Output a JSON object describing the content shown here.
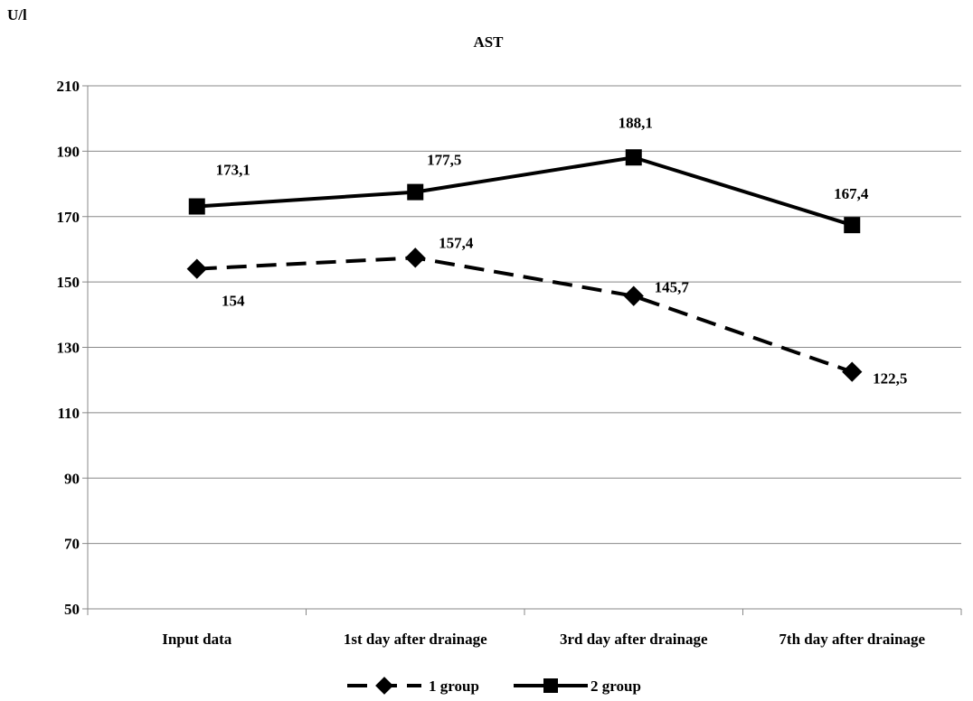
{
  "chart_data": {
    "type": "line",
    "title": "AST",
    "ylabel": "U/l",
    "xlabel": "",
    "categories": [
      "Input data",
      "1st day after drainage",
      "3rd day after drainage",
      "7th day after drainage"
    ],
    "ylim": [
      50,
      210
    ],
    "yticks": [
      50,
      70,
      90,
      110,
      130,
      150,
      170,
      190,
      210
    ],
    "grid": "horizontal",
    "legend_position": "bottom",
    "series": [
      {
        "name": "1 group",
        "values": [
          154,
          157.4,
          145.7,
          122.5
        ],
        "labels": [
          "154",
          "157,4",
          "145,7",
          "122,5"
        ],
        "marker": "diamond",
        "line_style": "dashed",
        "color": "#000000"
      },
      {
        "name": "2 group",
        "values": [
          173.1,
          177.5,
          188.1,
          167.4
        ],
        "labels": [
          "173,1",
          "177,5",
          "188,1",
          "167,4"
        ],
        "marker": "square",
        "line_style": "solid",
        "color": "#000000"
      }
    ]
  }
}
